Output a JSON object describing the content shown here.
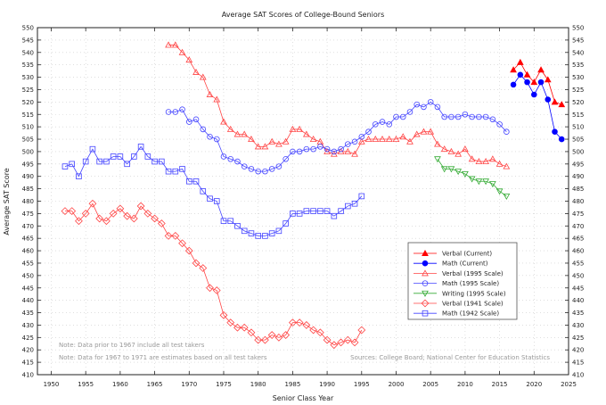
{
  "chart_data": {
    "type": "line",
    "title": "Average SAT Scores of College-Bound Seniors",
    "xlabel": "Senior Class Year",
    "ylabel": "Average SAT Score",
    "xlim": [
      1948,
      2025
    ],
    "ylim": [
      410,
      550
    ],
    "xticks": [
      1950,
      1955,
      1960,
      1965,
      1970,
      1975,
      1980,
      1985,
      1990,
      1995,
      2000,
      2005,
      2010,
      2015,
      2020,
      2025
    ],
    "yticks_step": 5,
    "grid": true,
    "legend_position": "lower-right",
    "notes": [
      "Note: Data prior to 1967 include all test takers",
      "Note: Data for 1967 to 1971 are estimates based on all test takers"
    ],
    "source": "Sources: College Board; National Center for Education Statistics",
    "series": [
      {
        "name": "Verbal (Current)",
        "color": "#ff0000",
        "marker": "triangle-filled",
        "x_start": 2017,
        "values": [
          533,
          536,
          531,
          528,
          533,
          529,
          520,
          519
        ]
      },
      {
        "name": "Math (Current)",
        "color": "#0000ff",
        "marker": "circle-filled",
        "x_start": 2017,
        "values": [
          527,
          531,
          528,
          523,
          528,
          521,
          508,
          505
        ]
      },
      {
        "name": "Verbal (1995 Scale)",
        "color": "#ff4444",
        "marker": "triangle",
        "x_start": 1967,
        "values": [
          543,
          543,
          540,
          537,
          532,
          530,
          523,
          521,
          512,
          509,
          507,
          507,
          505,
          502,
          502,
          504,
          503,
          504,
          509,
          509,
          507,
          505,
          504,
          500,
          499,
          500,
          500,
          499,
          504,
          505,
          505,
          505,
          505,
          505,
          506,
          504,
          507,
          508,
          508,
          503,
          501,
          500,
          499,
          501,
          497,
          496,
          496,
          497,
          495,
          494
        ]
      },
      {
        "name": "Math (1995 Scale)",
        "color": "#4444ff",
        "marker": "circle",
        "x_start": 1967,
        "values": [
          516,
          516,
          517,
          512,
          513,
          509,
          506,
          505,
          498,
          497,
          496,
          494,
          493,
          492,
          492,
          493,
          494,
          497,
          500,
          500,
          501,
          501,
          502,
          501,
          500,
          501,
          503,
          504,
          506,
          508,
          511,
          512,
          511,
          514,
          514,
          516,
          519,
          518,
          520,
          518,
          514,
          514,
          514,
          515,
          514,
          514,
          514,
          513,
          511,
          508
        ]
      },
      {
        "name": "Writing (1995 Scale)",
        "color": "#33aa33",
        "marker": "triangle-down",
        "x_start": 2006,
        "values": [
          497,
          493,
          493,
          492,
          491,
          489,
          488,
          488,
          487,
          484,
          482
        ]
      },
      {
        "name": "Verbal (1941 Scale)",
        "color": "#ff4444",
        "marker": "diamond",
        "x_start": 1952,
        "values": [
          476,
          476,
          472,
          475,
          479,
          473,
          472,
          475,
          477,
          474,
          473,
          478,
          475,
          473,
          471,
          466,
          466,
          463,
          460,
          455,
          453,
          445,
          444,
          434,
          431,
          429,
          429,
          427,
          424,
          424,
          426,
          425,
          426,
          431,
          431,
          430,
          428,
          427,
          424,
          422,
          423,
          424,
          423,
          428
        ]
      },
      {
        "name": "Math (1942 Scale)",
        "color": "#4444ff",
        "marker": "square",
        "x_start": 1952,
        "values": [
          494,
          495,
          490,
          496,
          501,
          496,
          496,
          498,
          498,
          495,
          498,
          502,
          498,
          496,
          496,
          492,
          492,
          493,
          488,
          488,
          484,
          481,
          480,
          472,
          472,
          470,
          468,
          467,
          466,
          466,
          467,
          468,
          471,
          475,
          475,
          476,
          476,
          476,
          476,
          474,
          476,
          478,
          479,
          482
        ]
      }
    ]
  }
}
